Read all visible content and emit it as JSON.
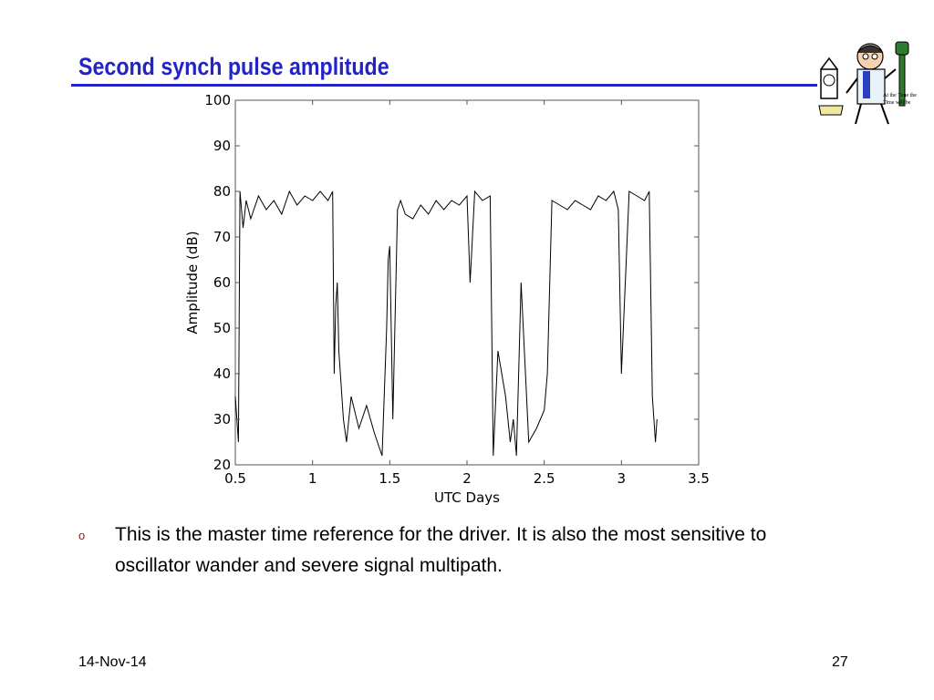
{
  "slide": {
    "title": "Second synch pulse amplitude",
    "bullet": "This is the master time reference for the driver. It is also the most sensitive to oscillator wander and severe signal multipath.",
    "date": "14-Nov-14",
    "page_number": "27",
    "clipart_caption_line1": "At the Tone the",
    "clipart_caption_line2": "Time will be"
  },
  "colors": {
    "title": "#2323c8",
    "bullet": "#cc0000",
    "trace": "#000000"
  },
  "chart_data": {
    "type": "line",
    "title": "",
    "xlabel": "UTC Days",
    "ylabel": "Amplitude (dB)",
    "xlim": [
      0.5,
      3.5
    ],
    "ylim": [
      20,
      100
    ],
    "xticks": [
      0.5,
      1,
      1.5,
      2,
      2.5,
      3,
      3.5
    ],
    "yticks": [
      20,
      30,
      40,
      50,
      60,
      70,
      80,
      90,
      100
    ],
    "grid": false,
    "series": [
      {
        "x": [
          0.5,
          0.52,
          0.53,
          0.55,
          0.57,
          0.6,
          0.65,
          0.7,
          0.75,
          0.8,
          0.85,
          0.9,
          0.95,
          1.0,
          1.05,
          1.1,
          1.13,
          1.14,
          1.15,
          1.16,
          1.17,
          1.2,
          1.22,
          1.25,
          1.3,
          1.35,
          1.4,
          1.45,
          1.48,
          1.49,
          1.5,
          1.52,
          1.55,
          1.57,
          1.6,
          1.65,
          1.7,
          1.75,
          1.8,
          1.85,
          1.9,
          1.95,
          2.0,
          2.02,
          2.05,
          2.1,
          2.15,
          2.17,
          2.2,
          2.25,
          2.28,
          2.3,
          2.32,
          2.35,
          2.4,
          2.45,
          2.5,
          2.52,
          2.55,
          2.6,
          2.65,
          2.7,
          2.75,
          2.8,
          2.85,
          2.9,
          2.95,
          2.98,
          3.0,
          3.05,
          3.1,
          3.15,
          3.18,
          3.2,
          3.22,
          3.23
        ],
        "y": [
          35,
          25,
          80,
          72,
          78,
          74,
          79,
          76,
          78,
          75,
          80,
          77,
          79,
          78,
          80,
          78,
          80,
          40,
          55,
          60,
          45,
          30,
          25,
          35,
          28,
          33,
          27,
          22,
          50,
          65,
          68,
          30,
          76,
          78,
          75,
          74,
          77,
          75,
          78,
          76,
          78,
          77,
          79,
          60,
          80,
          78,
          79,
          22,
          45,
          35,
          25,
          30,
          22,
          60,
          25,
          28,
          32,
          40,
          78,
          77,
          76,
          78,
          77,
          76,
          79,
          78,
          80,
          76,
          40,
          80,
          79,
          78,
          80,
          35,
          25,
          30
        ]
      }
    ]
  }
}
